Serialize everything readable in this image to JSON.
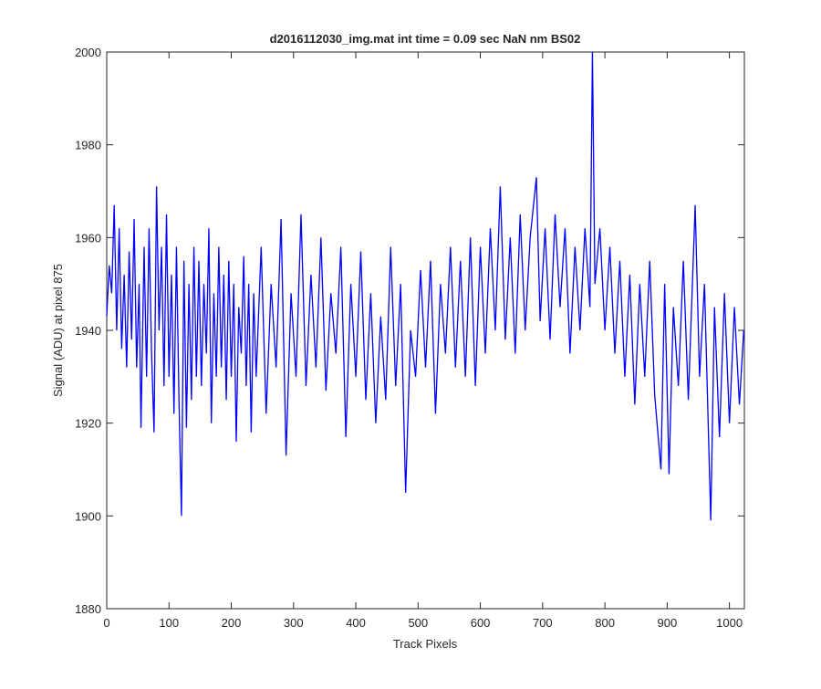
{
  "chart_data": {
    "type": "line",
    "title": "d2016112030_img.mat int time = 0.09 sec  NaN nm BS02",
    "x_label": "Track Pixels",
    "y_label": "Signal (ADU) at pixel 875",
    "xlim": [
      0,
      1024
    ],
    "ylim": [
      1880,
      2000
    ],
    "xticks": [
      0,
      100,
      200,
      300,
      400,
      500,
      600,
      700,
      800,
      900,
      1000
    ],
    "yticks": [
      1880,
      1900,
      1920,
      1940,
      1960,
      1980,
      2000
    ],
    "series": [
      {
        "color": "#0000ff",
        "x": [
          0,
          4,
          8,
          12,
          16,
          20,
          24,
          28,
          32,
          36,
          40,
          44,
          48,
          52,
          55,
          60,
          64,
          68,
          72,
          76,
          80,
          84,
          88,
          92,
          96,
          100,
          104,
          108,
          112,
          116,
          120,
          124,
          128,
          132,
          136,
          140,
          144,
          148,
          152,
          156,
          160,
          164,
          168,
          172,
          176,
          180,
          184,
          188,
          192,
          196,
          200,
          204,
          208,
          212,
          216,
          220,
          224,
          228,
          232,
          236,
          240,
          248,
          256,
          264,
          272,
          280,
          288,
          296,
          304,
          312,
          320,
          328,
          336,
          344,
          352,
          360,
          368,
          376,
          384,
          392,
          400,
          408,
          416,
          424,
          432,
          440,
          448,
          456,
          464,
          472,
          480,
          488,
          496,
          504,
          512,
          520,
          528,
          536,
          544,
          552,
          560,
          568,
          576,
          584,
          592,
          600,
          608,
          616,
          624,
          632,
          640,
          648,
          656,
          664,
          672,
          680,
          690,
          696,
          704,
          712,
          720,
          728,
          736,
          744,
          752,
          760,
          768,
          776,
          780,
          784,
          792,
          800,
          808,
          816,
          824,
          832,
          840,
          848,
          856,
          864,
          872,
          880,
          890,
          896,
          903,
          910,
          918,
          926,
          934,
          945,
          952,
          960,
          970,
          976,
          984,
          992,
          1000,
          1008,
          1016,
          1023
        ],
        "values": [
          1943,
          1954,
          1948,
          1967,
          1940,
          1962,
          1936,
          1952,
          1932,
          1957,
          1938,
          1964,
          1932,
          1950,
          1919,
          1958,
          1930,
          1962,
          1935,
          1918,
          1971,
          1940,
          1958,
          1928,
          1965,
          1930,
          1952,
          1922,
          1958,
          1925,
          1900,
          1955,
          1919,
          1950,
          1925,
          1958,
          1930,
          1955,
          1928,
          1950,
          1935,
          1962,
          1920,
          1948,
          1930,
          1958,
          1932,
          1952,
          1925,
          1955,
          1930,
          1950,
          1916,
          1945,
          1935,
          1956,
          1928,
          1950,
          1918,
          1948,
          1930,
          1958,
          1922,
          1950,
          1932,
          1964,
          1913,
          1948,
          1930,
          1965,
          1928,
          1952,
          1932,
          1960,
          1927,
          1948,
          1935,
          1958,
          1917,
          1950,
          1930,
          1957,
          1925,
          1948,
          1920,
          1943,
          1925,
          1958,
          1928,
          1950,
          1905,
          1940,
          1930,
          1953,
          1932,
          1955,
          1922,
          1950,
          1935,
          1958,
          1932,
          1955,
          1930,
          1960,
          1928,
          1958,
          1935,
          1962,
          1940,
          1971,
          1938,
          1960,
          1935,
          1965,
          1940,
          1960,
          1973,
          1942,
          1962,
          1938,
          1965,
          1945,
          1962,
          1935,
          1958,
          1940,
          1962,
          1945,
          2000,
          1950,
          1962,
          1940,
          1958,
          1935,
          1955,
          1930,
          1952,
          1924,
          1950,
          1930,
          1955,
          1926,
          1910,
          1950,
          1909,
          1945,
          1928,
          1955,
          1925,
          1967,
          1930,
          1950,
          1899,
          1945,
          1917,
          1948,
          1920,
          1945,
          1924,
          1940
        ]
      }
    ]
  }
}
